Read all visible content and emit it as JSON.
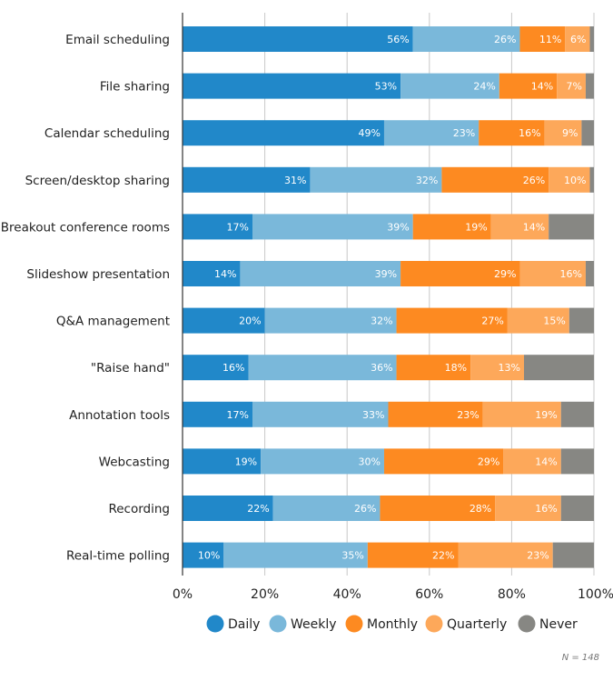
{
  "chart_data": {
    "type": "bar",
    "orientation": "horizontal",
    "stacked": true,
    "title": "",
    "xlabel": "",
    "ylabel": "",
    "xlim": [
      0,
      100
    ],
    "grid": true,
    "legend_position": "bottom",
    "categories": [
      "Email scheduling",
      "File sharing",
      "Calendar scheduling",
      "Screen/desktop sharing",
      "Breakout conference rooms",
      "Slideshow presentation",
      "Q&A management",
      "\"Raise hand\"",
      "Annotation tools",
      "Webcasting",
      "Recording",
      "Real-time polling"
    ],
    "series": [
      {
        "name": "Daily",
        "color": "#2188c9",
        "values": [
          56,
          53,
          49,
          31,
          17,
          14,
          20,
          16,
          17,
          19,
          22,
          10
        ],
        "labels": [
          "56%",
          "53%",
          "49%",
          "31%",
          "17%",
          "14%",
          "20%",
          "16%",
          "17%",
          "19%",
          "22%",
          "10%"
        ]
      },
      {
        "name": "Weekly",
        "color": "#7ab8da",
        "values": [
          26,
          24,
          23,
          32,
          39,
          39,
          32,
          36,
          33,
          30,
          26,
          35
        ],
        "labels": [
          "26%",
          "24%",
          "23%",
          "32%",
          "39%",
          "39%",
          "32%",
          "36%",
          "33%",
          "30%",
          "26%",
          "35%"
        ]
      },
      {
        "name": "Monthly",
        "color": "#fd8a21",
        "values": [
          11,
          14,
          16,
          26,
          19,
          29,
          27,
          18,
          23,
          29,
          28,
          22
        ],
        "labels": [
          "11%",
          "14%",
          "16%",
          "26%",
          "19%",
          "29%",
          "27%",
          "18%",
          "23%",
          "29%",
          "28%",
          "22%"
        ]
      },
      {
        "name": "Quarterly",
        "color": "#fda85a",
        "values": [
          6,
          7,
          9,
          10,
          14,
          16,
          15,
          13,
          19,
          14,
          16,
          23
        ],
        "labels": [
          "6%",
          "7%",
          "9%",
          "10%",
          "14%",
          "16%",
          "15%",
          "13%",
          "19%",
          "14%",
          "16%",
          "23%"
        ]
      },
      {
        "name": "Never",
        "color": "#878783",
        "values": [
          1,
          2,
          3,
          1,
          12,
          2,
          6,
          18,
          8,
          8,
          9,
          11
        ],
        "labels": [
          "",
          "",
          "",
          "",
          "",
          "",
          "",
          "",
          "",
          "",
          "",
          ""
        ]
      }
    ],
    "x_ticks": [
      0,
      20,
      40,
      60,
      80,
      100
    ],
    "x_tick_labels": [
      "0%",
      "20%",
      "40%",
      "60%",
      "80%",
      "100%"
    ],
    "annotations": [
      "N = 148"
    ]
  }
}
